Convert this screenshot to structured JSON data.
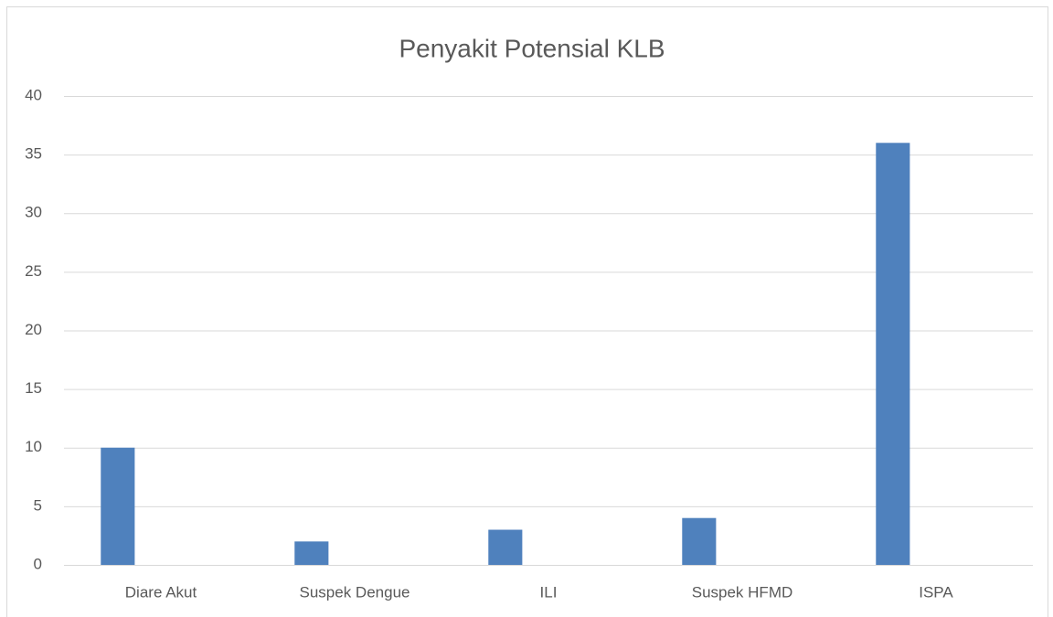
{
  "chart_data": {
    "type": "bar",
    "title": "Penyakit Potensial KLB",
    "categories": [
      "Diare Akut",
      "Suspek Dengue",
      "ILI",
      "Suspek HFMD",
      "ISPA"
    ],
    "values": [
      10,
      2,
      3,
      4,
      36
    ],
    "color": "#4f81bd",
    "ylim": [
      0,
      40
    ],
    "yticks": [
      0,
      5,
      10,
      15,
      20,
      25,
      30,
      35,
      40
    ],
    "grid": true
  }
}
